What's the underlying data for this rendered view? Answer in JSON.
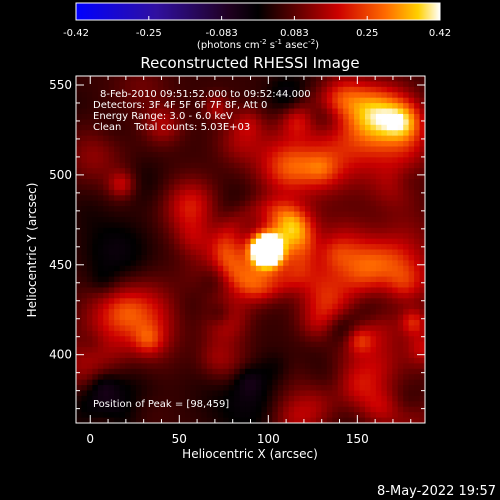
{
  "colorbar": {
    "ticks": [
      "-0.42",
      "-0.25",
      "-0.083",
      "0.083",
      "0.25",
      "0.42"
    ],
    "units_prefix": "(photons cm",
    "units_exp1": "-2",
    "units_mid": " s",
    "units_exp2": "-1",
    "units_mid2": " asec",
    "units_exp3": "-2",
    "units_suffix": ")"
  },
  "annotations": {
    "time_range": "8-Feb-2010 09:51:52.000 to 09:52:44.000",
    "detectors": "Detectors: 3F 4F 5F 6F 7F 8F, Att 0",
    "energy": "Energy Range: 3.0 - 6.0 keV",
    "clean": "Clean    Total counts: 5.03E+03",
    "peak": "Position of Peak = [98,459]"
  },
  "footer": {
    "date": "8-May-2022 19:57"
  },
  "chart_data": {
    "type": "heatmap",
    "title": "Reconstructed RHESSI Image",
    "xlabel": "Heliocentric X (arcsec)",
    "ylabel": "Heliocentric Y (arcsec)",
    "xlim": [
      -8,
      188
    ],
    "ylim": [
      362,
      555
    ],
    "x_ticks": [
      0,
      50,
      100,
      150
    ],
    "y_ticks": [
      400,
      450,
      500,
      550
    ],
    "zlim": [
      -0.42,
      0.42
    ],
    "peak": [
      98,
      459
    ],
    "colors": {
      "colorbar_low": "#0000ff",
      "colorbar_mid": "#000000",
      "colorbar_high": "#ffffff"
    }
  }
}
